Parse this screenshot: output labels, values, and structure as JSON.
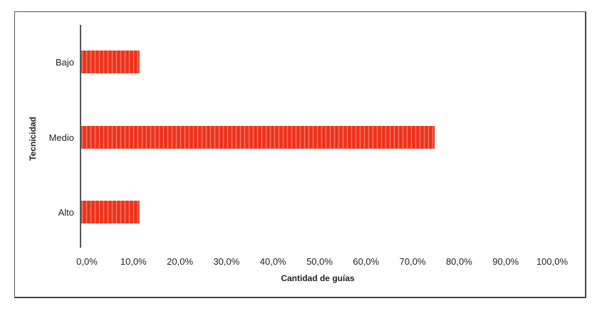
{
  "chart_data": {
    "type": "bar",
    "orientation": "horizontal",
    "categories": [
      "Bajo",
      "Medio",
      "Alto"
    ],
    "values": [
      12.5,
      75.0,
      12.5
    ],
    "xlabel": "Cantidad de guías",
    "ylabel": "Tecnicidad",
    "xlim": [
      0,
      100
    ],
    "xticks": [
      "0,0%",
      "10,0%",
      "20,0%",
      "30,0%",
      "40,0%",
      "50,0%",
      "60,0%",
      "70,0%",
      "80,0%",
      "90,0%",
      "100,0%"
    ],
    "grid": false,
    "bar_color": "#f03a24"
  }
}
